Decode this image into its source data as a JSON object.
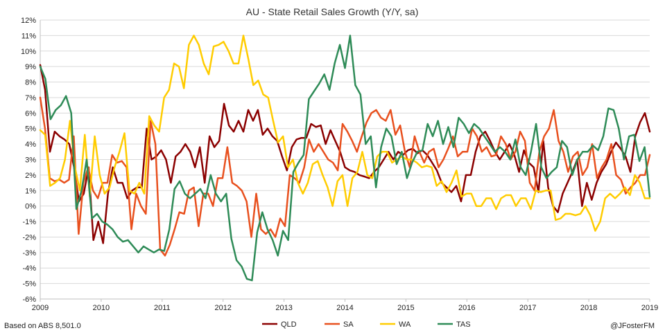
{
  "chart_data": {
    "type": "line",
    "title": "AU - State Retail Sales Growth (Y/Y, sa)",
    "x_start": "2009-01",
    "x_interval": "monthly",
    "x_ticks": [
      "2009",
      "2010",
      "2011",
      "2012",
      "2013",
      "2014",
      "2015",
      "2016",
      "2017",
      "2018",
      "2019"
    ],
    "y_ticks": [
      "-6%",
      "-5%",
      "-4%",
      "-3%",
      "-2%",
      "-1%",
      "0%",
      "1%",
      "2%",
      "3%",
      "4%",
      "5%",
      "6%",
      "7%",
      "8%",
      "9%",
      "10%",
      "11%",
      "12%"
    ],
    "ylim": [
      -6,
      12
    ],
    "y_unit": "%",
    "grid": "horizontal",
    "legend_position": "bottom",
    "series": [
      {
        "name": "QLD",
        "color": "#8B0000",
        "values": [
          9.1,
          7.5,
          3.5,
          4.8,
          4.5,
          4.3,
          4.0,
          2.5,
          0.3,
          0.8,
          2.5,
          -2.2,
          -1.0,
          -2.4,
          0.8,
          2.5,
          1.5,
          1.5,
          0.5,
          1.0,
          1.2,
          1.2,
          5.0,
          3.0,
          3.2,
          3.6,
          3.0,
          1.5,
          3.2,
          3.5,
          4.0,
          3.5,
          2.5,
          3.8,
          1.5,
          4.5,
          3.8,
          4.2,
          6.6,
          5.2,
          4.8,
          5.5,
          4.8,
          6.2,
          5.5,
          6.2,
          4.6,
          5.0,
          4.5,
          4.2,
          3.2,
          2.3,
          3.8,
          4.3,
          4.4,
          4.4,
          5.3,
          5.1,
          5.2,
          4.0,
          4.9,
          4.2,
          3.5,
          2.5,
          2.3,
          2.2,
          2.0,
          1.9,
          1.8,
          2.2,
          2.5,
          3.0,
          3.5,
          3.0,
          3.5,
          3.3,
          3.6,
          3.7,
          3.4,
          3.6,
          3.3,
          2.8,
          2.3,
          1.5,
          1.2,
          0.9,
          1.3,
          0.3,
          2.0,
          2.0,
          3.5,
          4.5,
          4.8,
          4.2,
          3.5,
          3.0,
          3.5,
          4.0,
          3.3,
          2.2,
          3.6,
          2.8,
          2.5,
          0.9,
          4.2,
          1.2,
          0.0,
          -0.4,
          0.8,
          1.5,
          2.2,
          3.0,
          0.0,
          1.5,
          0.4,
          1.5,
          2.2,
          2.7,
          3.5,
          4.1,
          3.7,
          3.2,
          2.2,
          4.5,
          5.4,
          6.0,
          4.8
        ]
      },
      {
        "name": "SA",
        "color": "#E8501E",
        "values": [
          7.0,
          5.0,
          1.8,
          1.6,
          1.7,
          1.5,
          1.7,
          4.5,
          -1.8,
          1.5,
          2.5,
          1.0,
          0.5,
          1.5,
          1.5,
          3.3,
          2.8,
          2.9,
          2.5,
          -1.5,
          0.8,
          0.0,
          -0.5,
          5.5,
          4.0,
          -2.8,
          -3.2,
          -2.5,
          -1.5,
          -0.4,
          -0.5,
          1.0,
          1.2,
          -1.3,
          0.8,
          0.8,
          0.0,
          1.8,
          1.8,
          3.8,
          1.5,
          1.3,
          1.0,
          0.3,
          -2.0,
          0.8,
          -1.5,
          -1.8,
          -1.5,
          -2.0,
          -0.8,
          -1.3,
          2.0,
          1.8,
          1.5,
          2.5,
          4.3,
          3.5,
          4.0,
          3.5,
          3.0,
          2.8,
          2.3,
          5.3,
          4.8,
          4.2,
          3.5,
          4.5,
          5.4,
          6.0,
          6.2,
          5.7,
          5.5,
          6.2,
          4.6,
          5.2,
          3.5,
          2.5,
          4.5,
          3.5,
          2.8,
          3.5,
          3.7,
          2.5,
          3.0,
          3.7,
          4.5,
          3.2,
          3.5,
          3.5,
          5.0,
          4.5,
          3.5,
          3.8,
          3.2,
          3.3,
          4.5,
          4.0,
          3.0,
          3.5,
          4.8,
          4.2,
          1.5,
          1.0,
          3.5,
          4.5,
          5.0,
          6.2,
          4.2,
          3.5,
          2.2,
          3.2,
          3.5,
          2.0,
          2.5,
          4.0,
          1.8,
          2.5,
          3.0,
          4.0,
          2.0,
          1.7,
          0.8,
          1.2,
          1.5,
          2.0,
          2.0,
          3.3
        ]
      },
      {
        "name": "WA",
        "color": "#FFCC00",
        "values": [
          4.9,
          4.6,
          1.3,
          1.5,
          1.8,
          3.0,
          5.5,
          2.5,
          1.0,
          4.6,
          0.6,
          4.5,
          2.0,
          0.8,
          1.2,
          2.5,
          3.5,
          4.7,
          1.0,
          0.8,
          1.5,
          0.8,
          5.8,
          5.2,
          4.8,
          7.0,
          7.5,
          9.2,
          9.0,
          7.6,
          10.4,
          11.0,
          10.4,
          9.2,
          8.5,
          10.3,
          10.4,
          10.6,
          10.0,
          9.2,
          9.2,
          11.0,
          9.5,
          7.8,
          8.1,
          7.2,
          7.0,
          5.5,
          4.1,
          4.5,
          2.5,
          3.0,
          1.5,
          0.8,
          1.5,
          2.7,
          2.9,
          2.0,
          1.2,
          0.0,
          1.6,
          2.0,
          0.0,
          1.8,
          2.2,
          3.5,
          2.0,
          1.8,
          3.2,
          3.5,
          3.5,
          2.8,
          3.0,
          3.2,
          3.0,
          3.0,
          2.8,
          2.5,
          2.6,
          2.5,
          1.3,
          1.6,
          0.9,
          1.5,
          2.3,
          0.6,
          0.8,
          0.8,
          0.0,
          0.0,
          0.5,
          0.5,
          -0.2,
          0.5,
          0.7,
          0.7,
          0.0,
          0.5,
          0.5,
          -0.2,
          1.0,
          0.9,
          1.0,
          1.0,
          -0.9,
          -0.8,
          -0.5,
          -0.5,
          -0.6,
          -0.5,
          0.0,
          -0.6,
          -1.6,
          -1.0,
          0.5,
          0.8,
          0.5,
          0.8,
          1.2,
          0.7,
          2.0,
          1.5,
          0.5,
          0.5
        ]
      },
      {
        "name": "TAS",
        "color": "#2E8B57",
        "values": [
          9.0,
          8.2,
          5.6,
          6.2,
          6.5,
          7.1,
          6.0,
          -0.2,
          1.0,
          3.0,
          -0.8,
          -0.5,
          -1.0,
          -1.2,
          -1.5,
          -2.0,
          -2.3,
          -2.2,
          -2.6,
          -3.0,
          -2.6,
          -2.8,
          -3.0,
          -2.8,
          -2.9,
          -1.5,
          1.1,
          1.6,
          0.8,
          0.5,
          0.8,
          1.1,
          0.5,
          2.0,
          0.8,
          0.3,
          0.8,
          -2.1,
          -3.5,
          -3.9,
          -4.7,
          -4.8,
          -1.7,
          -0.4,
          -1.5,
          -2.2,
          -3.2,
          -1.6,
          -2.2,
          2.2,
          2.8,
          3.3,
          6.9,
          7.4,
          7.9,
          8.5,
          7.5,
          9.2,
          10.4,
          8.9,
          11.0,
          7.8,
          7.2,
          4.0,
          4.5,
          1.2,
          3.8,
          5.0,
          4.5,
          2.7,
          3.5,
          1.8,
          2.8,
          3.5,
          3.6,
          5.3,
          4.5,
          5.5,
          4.0,
          5.1,
          3.8,
          5.7,
          5.3,
          4.7,
          5.3,
          5.0,
          4.5,
          4.0,
          3.5,
          3.8,
          3.5,
          3.0,
          4.3,
          2.5,
          2.0,
          3.5,
          5.3,
          2.5,
          1.8,
          2.2,
          2.5,
          4.2,
          3.8,
          2.0,
          3.0,
          3.5,
          3.5,
          3.9,
          3.6,
          4.5,
          6.3,
          6.2,
          5.0,
          3.0,
          4.5,
          4.6,
          2.9,
          3.8,
          0.6
        ]
      }
    ]
  },
  "legend": {
    "items": [
      {
        "label": "QLD",
        "color": "#8B0000"
      },
      {
        "label": "SA",
        "color": "#E8501E"
      },
      {
        "label": "WA",
        "color": "#FFCC00"
      },
      {
        "label": "TAS",
        "color": "#2E8B57"
      }
    ]
  },
  "footer": {
    "source": "Based on ABS 8,501.0",
    "author": "@JFosterFM"
  }
}
